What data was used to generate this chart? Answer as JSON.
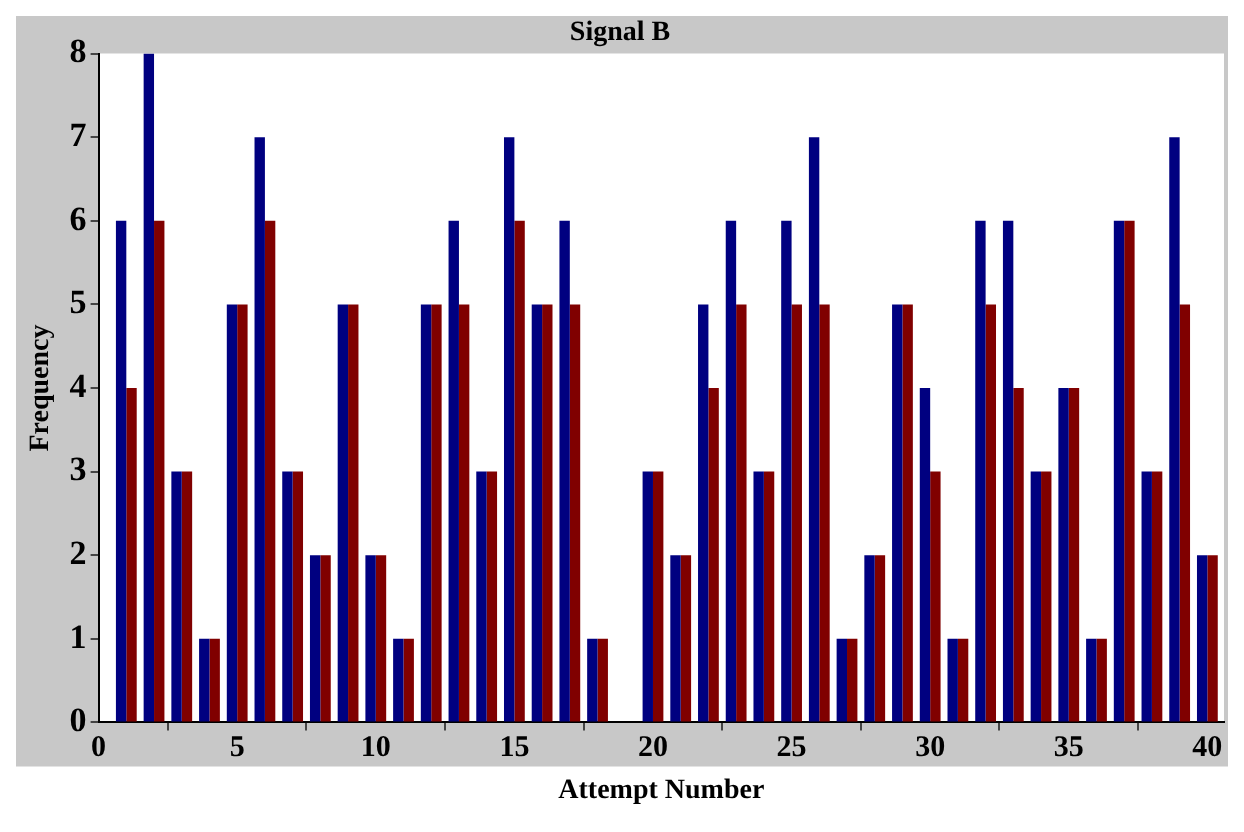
{
  "chart_data": {
    "type": "bar",
    "title": "Signal B",
    "xlabel": "Attempt Number",
    "ylabel": "Frequency",
    "x": [
      1,
      2,
      3,
      4,
      5,
      6,
      7,
      8,
      9,
      10,
      11,
      12,
      13,
      14,
      15,
      16,
      17,
      18,
      19,
      20,
      21,
      22,
      23,
      24,
      25,
      26,
      27,
      28,
      29,
      30,
      31,
      32,
      33,
      34,
      35,
      36,
      37,
      38,
      39,
      40
    ],
    "series": [
      {
        "color": "#000080",
        "values": [
          6,
          8,
          3,
          1,
          5,
          7,
          3,
          2,
          5,
          2,
          1,
          5,
          6,
          3,
          7,
          5,
          6,
          1,
          0,
          3,
          2,
          5,
          6,
          3,
          6,
          7,
          1,
          2,
          5,
          4,
          1,
          6,
          6,
          3,
          4,
          1,
          6,
          3,
          7,
          2
        ]
      },
      {
        "color": "#800000",
        "values": [
          4,
          6,
          3,
          1,
          5,
          6,
          3,
          2,
          5,
          2,
          1,
          5,
          5,
          3,
          6,
          5,
          5,
          1,
          0,
          3,
          2,
          4,
          5,
          3,
          5,
          5,
          1,
          2,
          5,
          3,
          1,
          5,
          4,
          3,
          4,
          1,
          6,
          3,
          5,
          2
        ]
      }
    ],
    "xlim": [
      0,
      40.6
    ],
    "xticks": [
      0,
      5,
      10,
      15,
      20,
      25,
      30,
      35,
      40
    ],
    "ylim": [
      0,
      8
    ],
    "yticks": [
      0,
      1,
      2,
      3,
      4,
      5,
      6,
      7,
      8
    ],
    "grid": false,
    "legend": false
  }
}
